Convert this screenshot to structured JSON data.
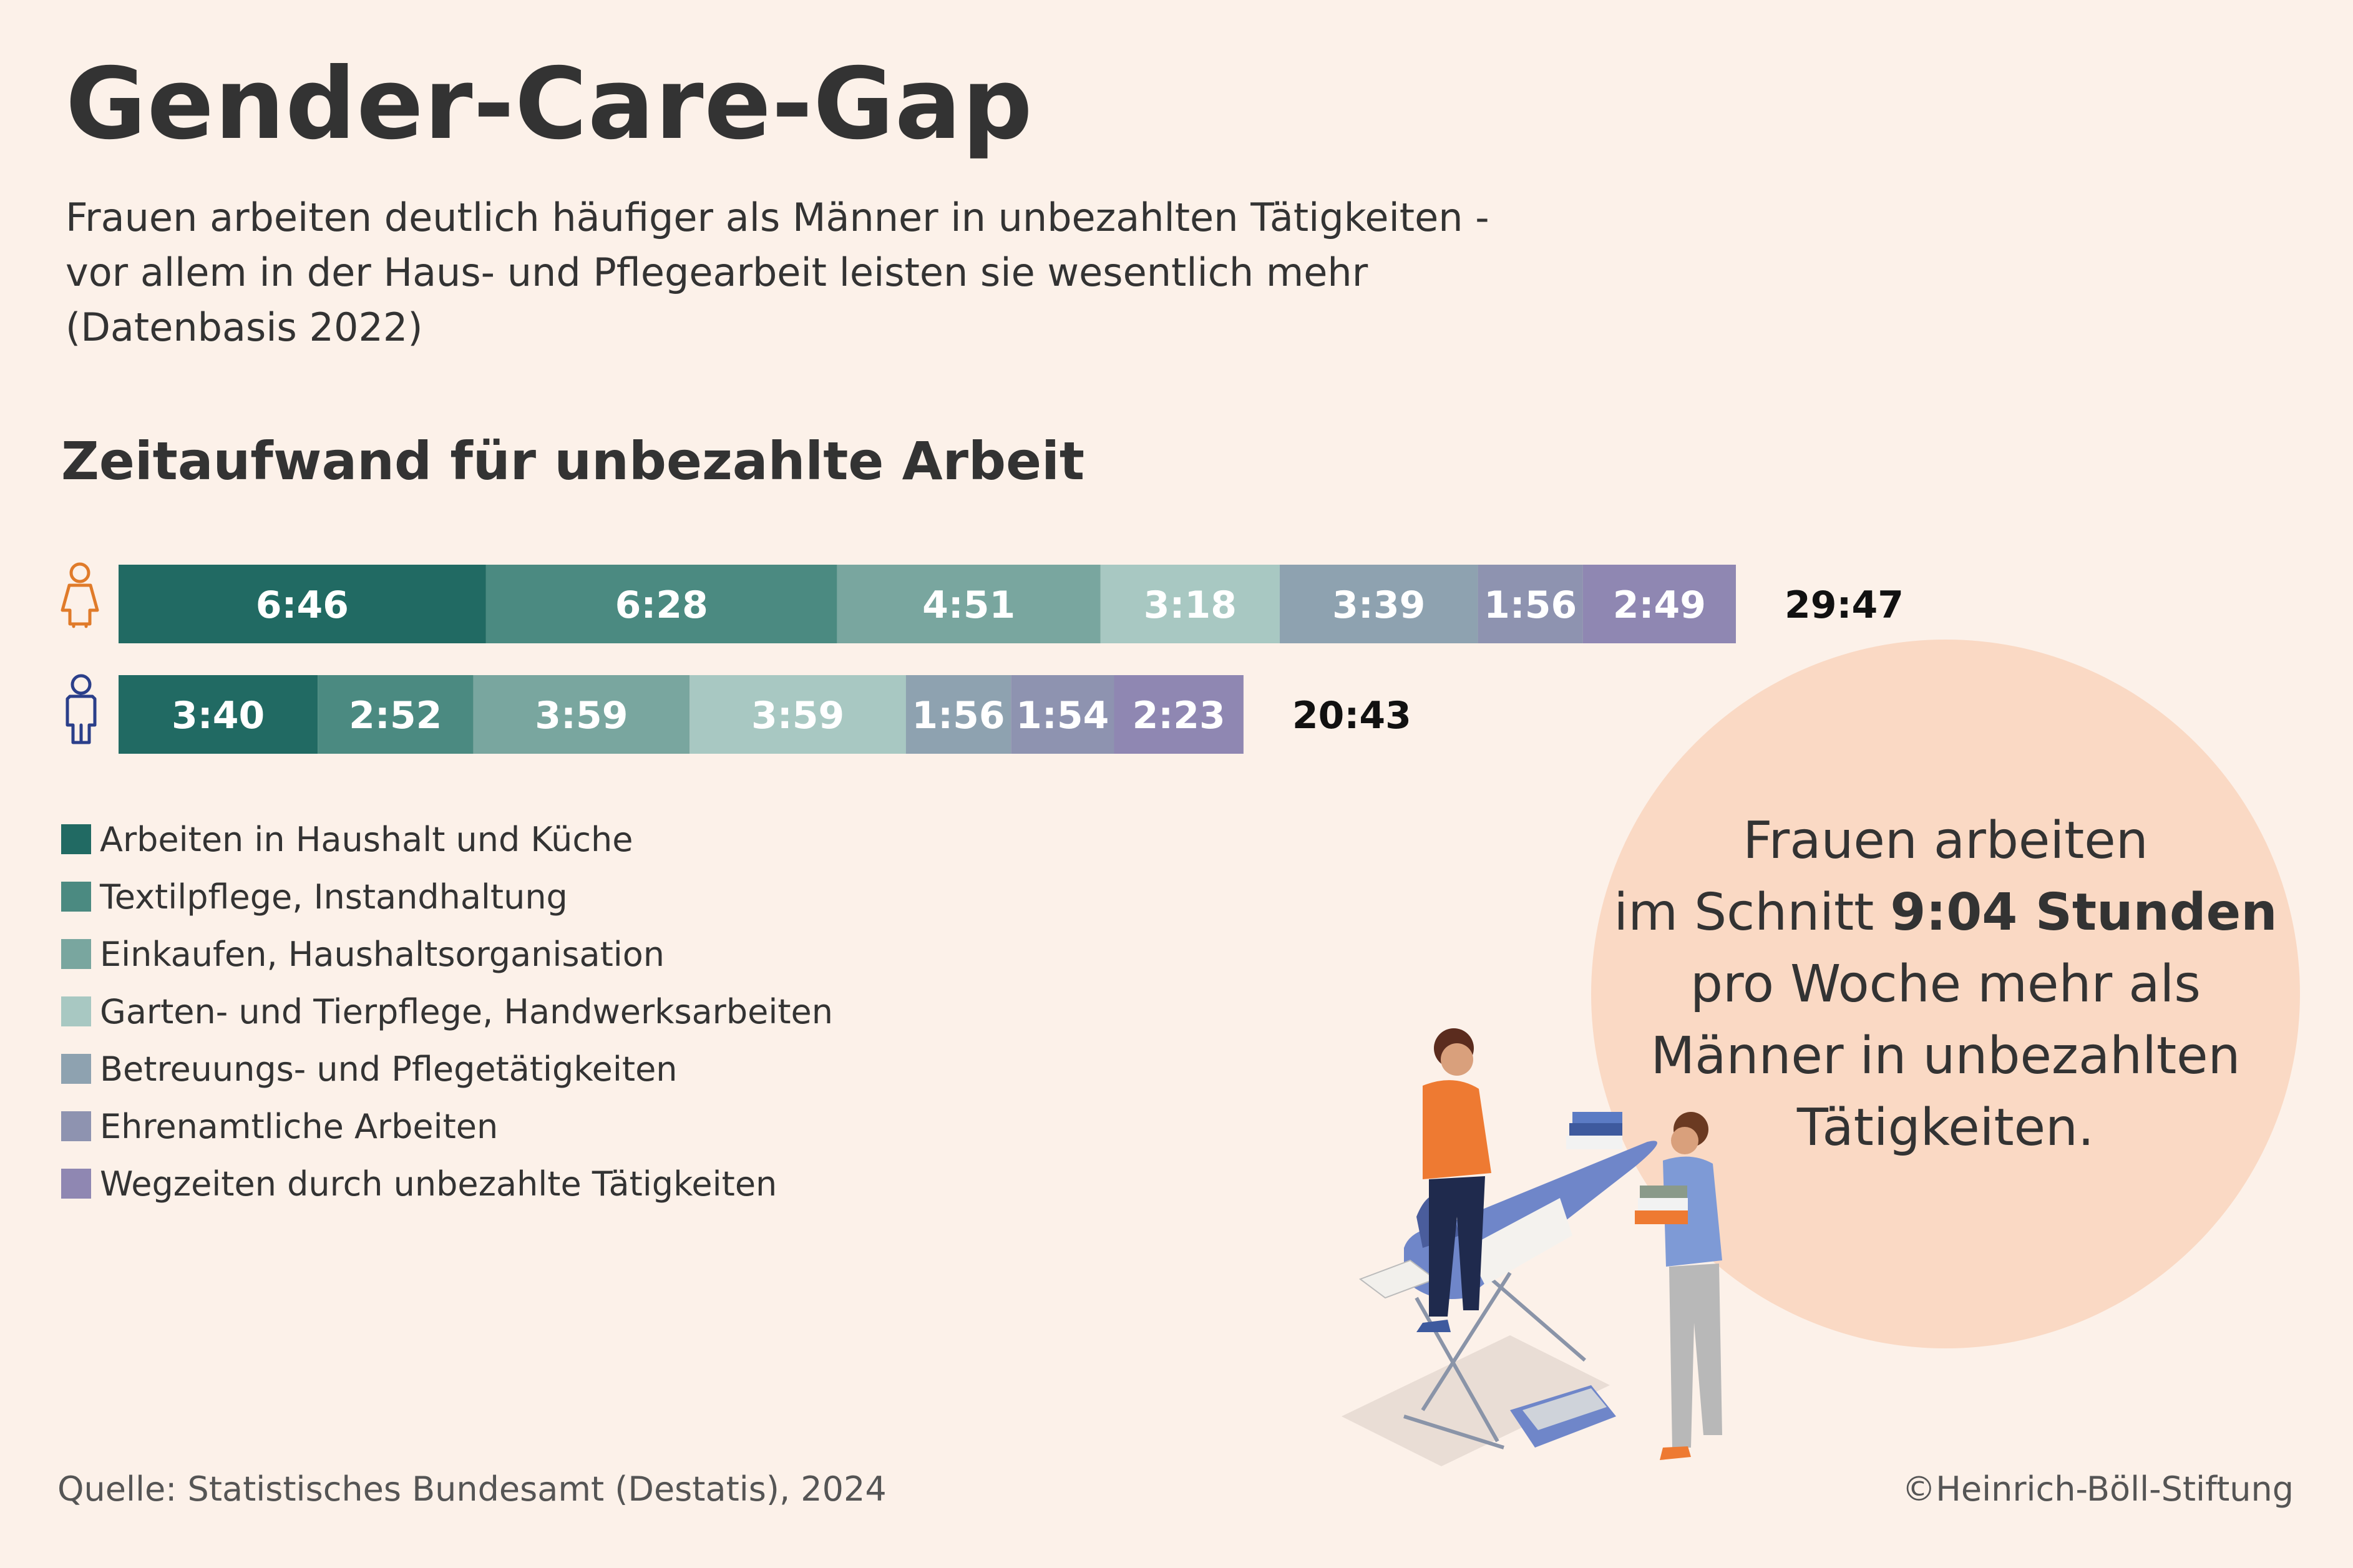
{
  "title": "Gender-Care-Gap",
  "subtitle": [
    "Frauen arbeiten deutlich häufiger als Männer in unbezahlten Tätigkeiten -",
    "vor allem in der Haus- und Pflegearbeit leisten sie wesentlich mehr",
    "(Datenbasis 2022)"
  ],
  "section_title": "Zeitaufwand für unbezahlte Arbeit",
  "colors": {
    "background": "#fcf1e9",
    "women_icon": "#e07b2a",
    "men_icon": "#2b3f8a",
    "circle": "#fad9c4"
  },
  "icons": {
    "women": "woman-icon",
    "men": "man-icon"
  },
  "chart_data": {
    "type": "bar",
    "orientation": "horizontal",
    "stacked": true,
    "unit": "hours:minutes per week",
    "categories": [
      "Arbeiten in Haushalt und Küche",
      "Textilpflege, Instandhaltung",
      "Einkaufen, Haushaltsorganisation",
      "Garten- und Tierpflege, Handwerksarbeiten",
      "Betreuungs- und Pflegetätigkeiten",
      "Ehrenamtliche Arbeiten",
      "Wegzeiten durch unbezahlte Tätigkeiten"
    ],
    "category_colors": [
      "#216a63",
      "#4b8a81",
      "#79a69f",
      "#a8c8c2",
      "#8ea2b0",
      "#8e93b0",
      "#8f87b2"
    ],
    "series": [
      {
        "icon": "woman-icon",
        "values": [
          "6:46",
          "6:28",
          "4:51",
          "3:18",
          "3:39",
          "1:56",
          "2:49"
        ],
        "total": "29:47"
      },
      {
        "icon": "man-icon",
        "values": [
          "3:40",
          "2:52",
          "3:59",
          "3:59",
          "1:56",
          "1:54",
          "2:23"
        ],
        "total": "20:43"
      }
    ],
    "legend_position": "bottom-left",
    "grid": false
  },
  "callout": {
    "line1": "Frauen arbeiten",
    "line2_pre": "im Schnitt ",
    "line2_bold": "9:04 Stunden",
    "line3": "pro Woche mehr als",
    "line4": "Männer in unbezahlten",
    "line5": "Tätigkeiten."
  },
  "source": "Quelle: Statistisches Bundesamt (Destatis), 2024",
  "copyright": "©Heinrich-Böll-Stiftung"
}
